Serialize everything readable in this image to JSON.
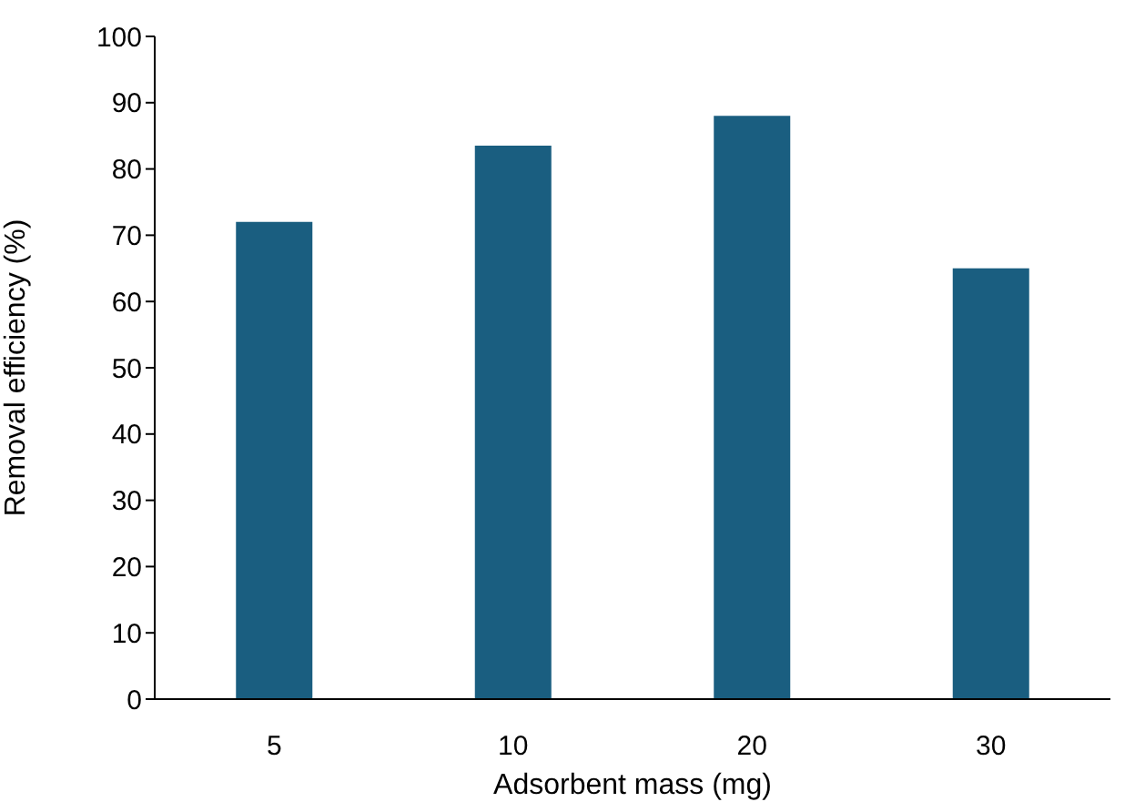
{
  "chart_data": {
    "type": "bar",
    "xlabel": "Adsorbent mass (mg)",
    "ylabel": "Removal efficiency (%)",
    "categories": [
      "5",
      "10",
      "20",
      "30"
    ],
    "values": [
      72,
      83.5,
      88,
      65
    ],
    "color": "#1a5e80",
    "ylim": [
      0,
      100
    ],
    "yticks": [
      0,
      10,
      20,
      30,
      40,
      50,
      60,
      70,
      80,
      90,
      100
    ],
    "grid": false,
    "legend": false
  }
}
